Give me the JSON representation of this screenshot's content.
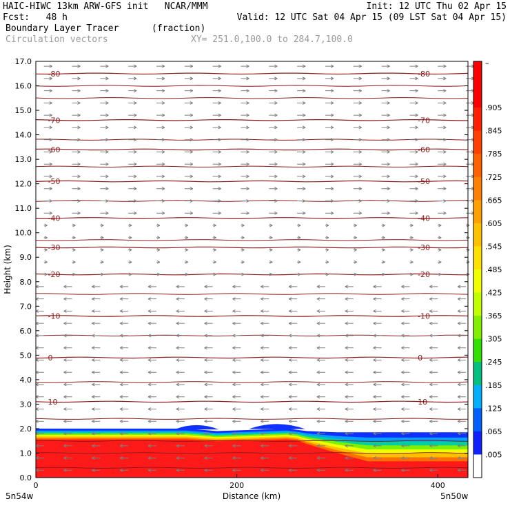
{
  "header": {
    "line1_left": "HAIC-HIWC 13km ARW-GFS init   NCAR/MMM",
    "line1_right": "Init: 12 UTC Thu 02 Apr 15",
    "line2_left": "Fcst:   48 h",
    "line2_right": "Valid: 12 UTC Sat 04 Apr 15 (09 LST Sat 04 Apr 15)",
    "line3_field": "Boundary Layer Tracer",
    "line3_units": "(fraction)",
    "line4_field": "Circulation vectors",
    "line4_xy": "XY= 251.0,100.0 to 284.7,100.0"
  },
  "bottom": {
    "left_endpoint": "5n54w",
    "right_endpoint": "5n50w"
  },
  "colors": {
    "contour": "#8b1a1a",
    "vector": "#7f7f7f",
    "tracer_main": "#ff1a1a",
    "tracer_top": "#1030ff"
  },
  "chart_data": {
    "type": "heatmap",
    "title": "Boundary Layer Tracer",
    "xlabel": "Distance (km)",
    "ylabel": "Height (km)",
    "xlim": [
      0,
      430
    ],
    "ylim": [
      0,
      17
    ],
    "x_ticks": [
      0,
      200,
      400
    ],
    "x_tick_labels": [
      "0",
      "200",
      "400"
    ],
    "y_ticks": [
      0,
      1,
      2,
      3,
      4,
      5,
      6,
      7,
      8,
      9,
      10,
      11,
      12,
      13,
      14,
      15,
      16,
      17
    ],
    "y_tick_labels": [
      "0.0",
      "1.0",
      "2.0",
      "3.0",
      "4.0",
      "5.0",
      "6.0",
      "7.0",
      "8.0",
      "9.0",
      "10.0",
      "11.0",
      "12.0",
      "13.0",
      "14.0",
      "15.0",
      "16.0",
      "17.0"
    ],
    "colorbar": {
      "labels": [
        "–",
        ".905",
        ".845",
        ".785",
        ".725",
        ".665",
        ".605",
        ".545",
        ".485",
        ".425",
        ".365",
        ".305",
        ".245",
        ".185",
        ".125",
        ".065",
        ".005"
      ],
      "colors": [
        "#ff0000",
        "#ff0000",
        "#ff2000",
        "#ff4000",
        "#ff6000",
        "#ff8000",
        "#ffa000",
        "#ffc000",
        "#ffe000",
        "#f0ff00",
        "#c0ff00",
        "#80f000",
        "#30e000",
        "#00c080",
        "#00b0ff",
        "#0060ff",
        "#1020ff",
        "#ffffff"
      ]
    },
    "tracer_profile": {
      "x_km": [
        0,
        130,
        150,
        180,
        215,
        250,
        270,
        300,
        340,
        430
      ],
      "top_km": [
        2.0,
        2.0,
        2.0,
        1.9,
        1.95,
        2.0,
        1.9,
        1.85,
        1.85,
        1.85
      ],
      "blue_bumps": [
        {
          "x_center_km": 160,
          "half_width_km": 22,
          "top_km": 2.15
        },
        {
          "x_center_km": 240,
          "half_width_km": 28,
          "top_km": 2.2
        }
      ]
    },
    "temperature_contours_celsius": [
      {
        "value": 10,
        "label": "10",
        "height_km": 3.1
      },
      {
        "value": 0,
        "label": "0",
        "height_km": 4.9
      },
      {
        "value": -10,
        "label": "-10",
        "height_km": 6.6
      },
      {
        "value": -20,
        "label": "-20",
        "height_km": 8.3
      },
      {
        "value": -30,
        "label": "-30",
        "height_km": 9.4
      },
      {
        "value": -40,
        "label": "-40",
        "height_km": 10.6
      },
      {
        "value": -50,
        "label": "-50",
        "height_km": 12.1
      },
      {
        "value": -60,
        "label": "-60",
        "height_km": 13.4
      },
      {
        "value": -70,
        "label": "-70",
        "height_km": 14.6
      },
      {
        "value": -80,
        "label": "-80",
        "height_km": 16.5
      }
    ],
    "extra_contour_heights_km": [
      0.4,
      1.0,
      1.5,
      2.4,
      3.9,
      5.8,
      7.5,
      9.7,
      11.3,
      12.7,
      13.8,
      15.5,
      16.0
    ],
    "vector_direction_by_height": [
      {
        "below_km": 8.0,
        "direction": "west"
      },
      {
        "below_km": 10.5,
        "direction": "weak"
      },
      {
        "below_km": 17.0,
        "direction": "east"
      }
    ]
  }
}
